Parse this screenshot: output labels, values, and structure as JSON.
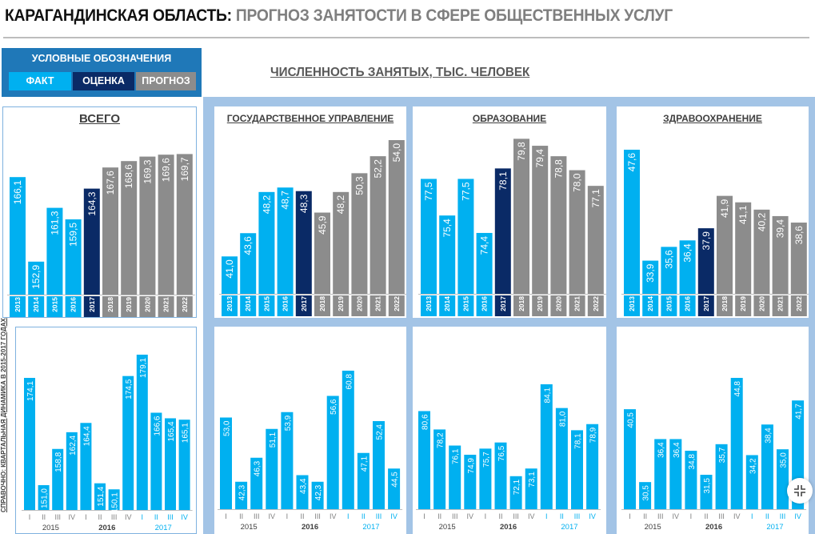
{
  "header": {
    "title_part1": "КАРАГАНДИНСКАЯ ОБЛАСТЬ:",
    "title_part2": "ПРОГНОЗ ЗАНЯТОСТИ В СФЕРЕ ОБЩЕСТВЕННЫХ УСЛУГ"
  },
  "legend": {
    "title": "УСЛОВНЫЕ ОБОЗНАЧЕНИЯ",
    "items": [
      {
        "label": "ФАКТ",
        "color": "#00b0f0"
      },
      {
        "label": "ОЦЕНКА",
        "color": "#0a2a66"
      },
      {
        "label": "ПРОГНОЗ",
        "color": "#8c8c8c"
      }
    ]
  },
  "main_title": "ЧИСЛЕННОСТЬ ЗАНЯТЫХ, ТЫС. ЧЕЛОВЕК",
  "side_label": "СПРАВОЧНО: КВАРТАЛЬНАЯ ДИНАМИКА В 2015-2017 ГОДАХ",
  "colors": {
    "fact": "#00b0f0",
    "estimate": "#0a2a66",
    "forecast": "#8c8c8c"
  },
  "chart_data": [
    {
      "type": "bar",
      "title": "ВСЕГО",
      "categories": [
        "2013",
        "2014",
        "2015",
        "2016",
        "2017",
        "2018",
        "2019",
        "2020",
        "2021",
        "2022"
      ],
      "values": [
        166.1,
        152.9,
        161.3,
        159.5,
        164.3,
        167.6,
        168.6,
        169.3,
        169.6,
        169.7
      ],
      "labels": [
        "166,1",
        "152,9",
        "161,3",
        "159,5",
        "164,3",
        "167,6",
        "168,6",
        "169,3",
        "169,6",
        "169,7"
      ],
      "kinds": [
        "fact",
        "fact",
        "fact",
        "fact",
        "estimate",
        "forecast",
        "forecast",
        "forecast",
        "forecast",
        "forecast"
      ]
    },
    {
      "type": "bar",
      "title": "ГОСУДАРСТВЕННОЕ УПРАВЛЕНИЕ",
      "categories": [
        "2013",
        "2014",
        "2015",
        "2016",
        "2017",
        "2018",
        "2019",
        "2020",
        "2021",
        "2022"
      ],
      "values": [
        41.0,
        43.6,
        48.2,
        48.7,
        48.3,
        45.9,
        48.2,
        50.3,
        52.2,
        54.0
      ],
      "labels": [
        "41,0",
        "43,6",
        "48,2",
        "48,7",
        "48,3",
        "45,9",
        "48,2",
        "50,3",
        "52,2",
        "54,0"
      ],
      "kinds": [
        "fact",
        "fact",
        "fact",
        "fact",
        "estimate",
        "forecast",
        "forecast",
        "forecast",
        "forecast",
        "forecast"
      ]
    },
    {
      "type": "bar",
      "title": "ОБРАЗОВАНИЕ",
      "categories": [
        "2013",
        "2014",
        "2015",
        "2016",
        "2017",
        "2018",
        "2019",
        "2020",
        "2021",
        "2022"
      ],
      "values": [
        77.5,
        75.4,
        77.5,
        74.4,
        78.1,
        79.8,
        79.4,
        78.8,
        78.0,
        77.1
      ],
      "labels": [
        "77,5",
        "75,4",
        "77,5",
        "74,4",
        "78,1",
        "79,8",
        "79,4",
        "78,8",
        "78,0",
        "77,1"
      ],
      "kinds": [
        "fact",
        "fact",
        "fact",
        "fact",
        "estimate",
        "forecast",
        "forecast",
        "forecast",
        "forecast",
        "forecast"
      ]
    },
    {
      "type": "bar",
      "title": "ЗДРАВООХРАНЕНИЕ",
      "categories": [
        "2013",
        "2014",
        "2015",
        "2016",
        "2017",
        "2018",
        "2019",
        "2020",
        "2021",
        "2022"
      ],
      "values": [
        47.6,
        33.9,
        35.6,
        36.4,
        37.9,
        41.9,
        41.1,
        40.2,
        39.4,
        38.6
      ],
      "labels": [
        "47,6",
        "33,9",
        "35,6",
        "36,4",
        "37,9",
        "41,9",
        "41,1",
        "40,2",
        "39,4",
        "38,6"
      ],
      "kinds": [
        "fact",
        "fact",
        "fact",
        "fact",
        "estimate",
        "forecast",
        "forecast",
        "forecast",
        "forecast",
        "forecast"
      ]
    },
    {
      "type": "bar",
      "title": "",
      "quarters": [
        "I",
        "II",
        "III",
        "IV",
        "I",
        "II",
        "III",
        "IV",
        "I",
        "II",
        "III",
        "IV"
      ],
      "years": [
        "2015",
        "2016",
        "2017"
      ],
      "values": [
        174.1,
        151.0,
        158.8,
        162.4,
        164.4,
        151.4,
        150.1,
        174.5,
        179.1,
        166.6,
        165.4,
        165.1
      ],
      "labels": [
        "174,1",
        "151,0",
        "158,8",
        "162,4",
        "164,4",
        "151,4",
        "150,1",
        "174,5",
        "179,1",
        "166,6",
        "165,4",
        "165,1"
      ]
    },
    {
      "type": "bar",
      "title": "",
      "quarters": [
        "I",
        "II",
        "III",
        "IV",
        "I",
        "II",
        "III",
        "IV",
        "I",
        "II",
        "III",
        "IV"
      ],
      "years": [
        "2015",
        "2016",
        "2017"
      ],
      "values": [
        53.0,
        42.3,
        46.3,
        51.1,
        53.9,
        43.4,
        42.3,
        56.6,
        60.8,
        47.1,
        52.4,
        44.5
      ],
      "labels": [
        "53,0",
        "42,3",
        "46,3",
        "51,1",
        "53,9",
        "43,4",
        "42,3",
        "56,6",
        "60,8",
        "47,1",
        "52,4",
        "44,5"
      ]
    },
    {
      "type": "bar",
      "title": "",
      "quarters": [
        "I",
        "II",
        "III",
        "IV",
        "I",
        "II",
        "III",
        "IV",
        "I",
        "II",
        "III",
        "IV"
      ],
      "years": [
        "2015",
        "2016",
        "2017"
      ],
      "values": [
        80.6,
        78.2,
        76.1,
        74.9,
        75.7,
        76.5,
        72.1,
        73.1,
        84.1,
        81.0,
        78.1,
        78.9
      ],
      "labels": [
        "80,6",
        "78,2",
        "76,1",
        "74,9",
        "75,7",
        "76,5",
        "72,1",
        "73,1",
        "84,1",
        "81,0",
        "78,1",
        "78,9"
      ]
    },
    {
      "type": "bar",
      "title": "",
      "quarters": [
        "I",
        "II",
        "III",
        "IV",
        "I",
        "II",
        "III",
        "IV",
        "I",
        "II",
        "III",
        "IV"
      ],
      "years": [
        "2015",
        "2016",
        "2017"
      ],
      "values": [
        40.5,
        30.5,
        36.4,
        36.4,
        34.8,
        31.5,
        35.7,
        44.8,
        34.2,
        38.4,
        35.0,
        41.7
      ],
      "labels": [
        "40,5",
        "30,5",
        "36,4",
        "36,4",
        "34,8",
        "31,5",
        "35,7",
        "44,8",
        "34,2",
        "38,4",
        "35,0",
        "41,7"
      ]
    }
  ]
}
